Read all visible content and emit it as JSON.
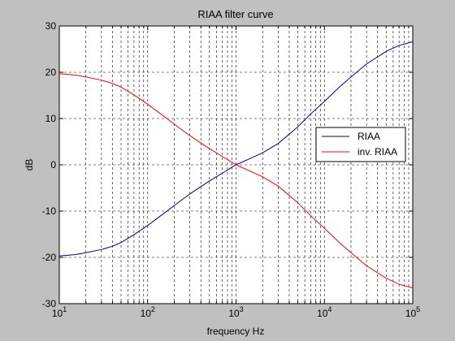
{
  "chart_data": {
    "type": "line",
    "title": "RIAA filter curve",
    "xlabel": "frequency Hz",
    "ylabel": "dB",
    "xscale": "log",
    "xlim": [
      10,
      100000
    ],
    "ylim": [
      -30,
      30
    ],
    "x_tick_labels": [
      {
        "base": "10",
        "exp": "1"
      },
      {
        "base": "10",
        "exp": "2"
      },
      {
        "base": "10",
        "exp": "3"
      },
      {
        "base": "10",
        "exp": "4"
      },
      {
        "base": "10",
        "exp": "5"
      }
    ],
    "y_ticks": [
      -30,
      -20,
      -10,
      0,
      10,
      20,
      30
    ],
    "grid": "on, dashed, major and minor",
    "legend_position": "right",
    "series": [
      {
        "name": "RIAA",
        "color": "#00007f",
        "points": [
          [
            10,
            -19.7
          ],
          [
            15,
            -19.4
          ],
          [
            20,
            -19.0
          ],
          [
            30,
            -18.3
          ],
          [
            40,
            -17.6
          ],
          [
            50,
            -16.8
          ],
          [
            70,
            -15.1
          ],
          [
            100,
            -13.1
          ],
          [
            150,
            -10.6
          ],
          [
            200,
            -8.8
          ],
          [
            300,
            -6.3
          ],
          [
            400,
            -4.7
          ],
          [
            500,
            -3.5
          ],
          [
            700,
            -1.8
          ],
          [
            1000,
            0.0
          ],
          [
            1500,
            1.5
          ],
          [
            2000,
            2.6
          ],
          [
            3000,
            4.6
          ],
          [
            5000,
            8.2
          ],
          [
            7000,
            11.0
          ],
          [
            10000,
            13.7
          ],
          [
            15000,
            16.9
          ],
          [
            20000,
            19.0
          ],
          [
            30000,
            21.8
          ],
          [
            50000,
            24.5
          ],
          [
            70000,
            25.8
          ],
          [
            100000,
            26.6
          ]
        ]
      },
      {
        "name": "inv. RIAA",
        "color": "#ff0000",
        "points": [
          [
            10,
            19.7
          ],
          [
            15,
            19.4
          ],
          [
            20,
            19.0
          ],
          [
            30,
            18.3
          ],
          [
            40,
            17.6
          ],
          [
            50,
            16.8
          ],
          [
            70,
            15.1
          ],
          [
            100,
            13.1
          ],
          [
            150,
            10.6
          ],
          [
            200,
            8.8
          ],
          [
            300,
            6.3
          ],
          [
            400,
            4.7
          ],
          [
            500,
            3.5
          ],
          [
            700,
            1.8
          ],
          [
            1000,
            0.0
          ],
          [
            1500,
            -1.5
          ],
          [
            2000,
            -2.6
          ],
          [
            3000,
            -4.6
          ],
          [
            5000,
            -8.2
          ],
          [
            7000,
            -11.0
          ],
          [
            10000,
            -13.7
          ],
          [
            15000,
            -16.9
          ],
          [
            20000,
            -19.0
          ],
          [
            30000,
            -21.8
          ],
          [
            50000,
            -24.5
          ],
          [
            70000,
            -25.8
          ],
          [
            100000,
            -26.6
          ]
        ]
      }
    ]
  }
}
